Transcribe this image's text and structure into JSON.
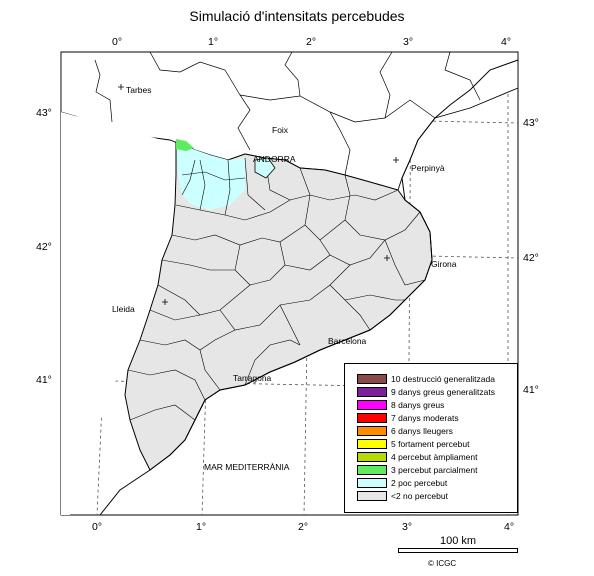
{
  "title": "Simulació d'intensitats percebudes",
  "longitude_ticks_top": [
    "0°",
    "1°",
    "2°",
    "3°",
    "4°"
  ],
  "longitude_ticks_bottom": [
    "0°",
    "1°",
    "2°",
    "3°",
    "4°"
  ],
  "latitude_ticks_left": [
    "43°",
    "42°",
    "41°"
  ],
  "latitude_ticks_right": [
    "43°",
    "42°",
    "41°"
  ],
  "places": [
    {
      "name": "Tarbes",
      "marker": true
    },
    {
      "name": "Foix",
      "marker": false
    },
    {
      "name": "ANDORRA",
      "marker": false
    },
    {
      "name": "Perpinyà",
      "marker": true
    },
    {
      "name": "Girona",
      "marker": true
    },
    {
      "name": "Lleida",
      "marker": true
    },
    {
      "name": "Barcelona",
      "marker": false
    },
    {
      "name": "Tarragona",
      "marker": false
    },
    {
      "name": "MAR MEDITERRÀNIA",
      "marker": false
    }
  ],
  "legend": {
    "items": [
      {
        "label": "10 destrucció generalitzada",
        "color": "#8B4A4A"
      },
      {
        "label": "9 danys greus generalitzats",
        "color": "#7B1F9A"
      },
      {
        "label": "8 danys greus",
        "color": "#FF00FF"
      },
      {
        "label": "7 danys moderats",
        "color": "#FF0000"
      },
      {
        "label": "6 danys lleugers",
        "color": "#FF8C00"
      },
      {
        "label": "5 fortament percebut",
        "color": "#FFFF00"
      },
      {
        "label": "4 percebut àmpliament",
        "color": "#B6DB00"
      },
      {
        "label": "3 percebut parcialment",
        "color": "#5EEB5E"
      },
      {
        "label": "2 poc percebut",
        "color": "#CCFFFF"
      },
      {
        "label": "<2 no percebut",
        "color": "#E6E6E6"
      }
    ]
  },
  "scale": {
    "label": "100 km"
  },
  "copyright": "© ICGC"
}
